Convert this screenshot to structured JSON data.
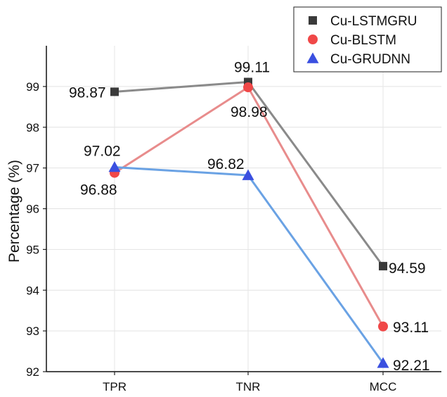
{
  "chart_data": {
    "type": "line",
    "title": "",
    "xlabel": "",
    "ylabel": "Percentage (%)",
    "categories": [
      "TPR",
      "TNR",
      "MCC"
    ],
    "ylim": [
      92,
      100
    ],
    "yticks": [
      "92",
      "93",
      "94",
      "95",
      "96",
      "97",
      "98",
      "99"
    ],
    "grid": true,
    "legend_position": "top-right",
    "series": [
      {
        "name": "Cu-LSTMGRU",
        "values": [
          98.87,
          99.11,
          94.59
        ],
        "labels": [
          "98.87",
          "99.11",
          "94.59"
        ],
        "color": "#8a8a8a",
        "marker_color": "#3a3a3a",
        "marker": "square"
      },
      {
        "name": "Cu-BLSTM",
        "values": [
          96.88,
          98.98,
          93.11
        ],
        "labels": [
          "96.88",
          "98.98",
          "93.11"
        ],
        "color": "#e88c8c",
        "marker_color": "#f04848",
        "marker": "circle"
      },
      {
        "name": "Cu-GRUDNN",
        "values": [
          97.02,
          96.82,
          92.21
        ],
        "labels": [
          "97.02",
          "96.82",
          "92.21"
        ],
        "color": "#6aa2e4",
        "marker_color": "#3a4fe0",
        "marker": "triangle"
      }
    ]
  }
}
